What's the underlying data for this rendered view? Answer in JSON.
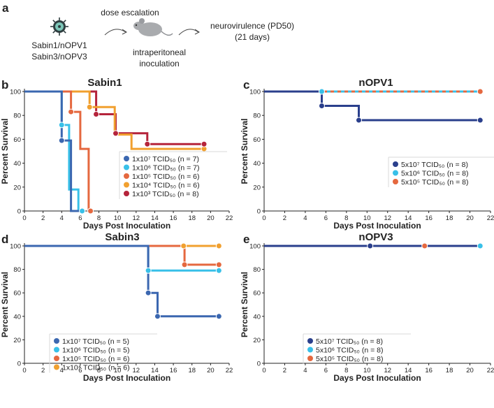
{
  "panel_a": {
    "label": "a",
    "strains": [
      "Sabin1/nOPV1",
      "Sabin3/nOPV3"
    ],
    "step1": "dose escalation",
    "step2": [
      "intraperitoneal",
      "inoculation"
    ],
    "outcome": [
      "neurovirulence (PD50)",
      "(21 days)"
    ],
    "virus_icon": "virus-icon",
    "mouse_icon": "mouse-icon"
  },
  "chart_data": [
    {
      "id": "b",
      "panel_label": "b",
      "type": "line",
      "step": true,
      "title": "Sabin1",
      "xlabel": "Days Post Inoculation",
      "ylabel": "Percent Survival",
      "xlim": [
        0,
        22
      ],
      "ylim": [
        0,
        100
      ],
      "xticks": [
        0,
        2,
        4,
        6,
        8,
        10,
        12,
        14,
        16,
        18,
        20,
        22
      ],
      "yticks": [
        0,
        20,
        40,
        60,
        80,
        100
      ],
      "legend": {
        "position": "lower-right"
      },
      "series": [
        {
          "name": "1x10⁷ TCID₅₀ (n = 7)",
          "color": "#3b67b0",
          "points": [
            [
              0,
              100
            ],
            [
              4,
              100
            ],
            [
              4,
              59
            ],
            [
              5,
              59
            ],
            [
              5,
              0
            ],
            [
              6,
              0
            ]
          ],
          "markers": [
            [
              4,
              59
            ]
          ]
        },
        {
          "name": "1x10⁶ TCID₅₀ (n = 7)",
          "color": "#38c0e8",
          "points": [
            [
              0,
              100
            ],
            [
              4,
              100
            ],
            [
              4,
              72
            ],
            [
              4.8,
              72
            ],
            [
              4.8,
              18
            ],
            [
              5.8,
              18
            ],
            [
              5.8,
              0
            ],
            [
              6.2,
              0
            ]
          ],
          "markers": [
            [
              4,
              72
            ],
            [
              6.2,
              0
            ]
          ]
        },
        {
          "name": "1x10⁵ TCID₅₀ (n = 6)",
          "color": "#e5683f",
          "points": [
            [
              0,
              100
            ],
            [
              5,
              100
            ],
            [
              5,
              83
            ],
            [
              6,
              83
            ],
            [
              6,
              52
            ],
            [
              6.9,
              52
            ],
            [
              6.9,
              0
            ],
            [
              7.1,
              0
            ]
          ],
          "markers": [
            [
              5,
              83
            ],
            [
              7.1,
              0
            ]
          ]
        },
        {
          "name": "1x10⁴ TCID₅₀ (n = 6)",
          "color": "#f1a02f",
          "points": [
            [
              0,
              100
            ],
            [
              7,
              100
            ],
            [
              7,
              87
            ],
            [
              9.7,
              87
            ],
            [
              9.7,
              64
            ],
            [
              11.5,
              64
            ],
            [
              11.5,
              52
            ],
            [
              19.3,
              52
            ]
          ],
          "markers": [
            [
              7,
              87
            ],
            [
              19.3,
              52
            ]
          ]
        },
        {
          "name": "1x10³ TCID₅₀ (n = 8)",
          "color": "#b5243b",
          "points": [
            [
              0,
              100
            ],
            [
              7.7,
              100
            ],
            [
              7.7,
              81
            ],
            [
              9.8,
              81
            ],
            [
              9.8,
              65
            ],
            [
              13.2,
              65
            ],
            [
              13.2,
              56
            ],
            [
              19.3,
              56
            ]
          ],
          "markers": [
            [
              7.7,
              81
            ],
            [
              9.8,
              65
            ],
            [
              13.2,
              56
            ],
            [
              19.3,
              56
            ]
          ]
        }
      ]
    },
    {
      "id": "c",
      "panel_label": "c",
      "type": "line",
      "step": true,
      "title": "nOPV1",
      "xlabel": "Days Post Inoculation",
      "ylabel": "Percent Survival",
      "xlim": [
        0,
        22
      ],
      "ylim": [
        0,
        100
      ],
      "xticks": [
        0,
        2,
        4,
        6,
        8,
        10,
        12,
        14,
        16,
        18,
        20,
        22
      ],
      "yticks": [
        0,
        20,
        40,
        60,
        80,
        100
      ],
      "legend": {
        "position": "lower-right"
      },
      "series": [
        {
          "name": "5x10⁷ TCID₅₀ (n = 8)",
          "color": "#2a3f8c",
          "points": [
            [
              0,
              100
            ],
            [
              5.6,
              100
            ],
            [
              5.6,
              88
            ],
            [
              9.2,
              88
            ],
            [
              9.2,
              76
            ],
            [
              21,
              76
            ]
          ],
          "markers": [
            [
              5.6,
              88
            ],
            [
              9.2,
              76
            ],
            [
              21,
              76
            ]
          ]
        },
        {
          "name": "5x10⁶ TCID₅₀ (n = 8)",
          "color": "#38c0e8",
          "points": [
            [
              0,
              100
            ],
            [
              21,
              100
            ]
          ],
          "markers": [
            [
              5.6,
              100
            ]
          ]
        },
        {
          "name": "5x10⁵ TCID₅₀ (n = 8)",
          "color": "#e5683f",
          "points": [
            [
              0,
              100
            ],
            [
              21,
              100
            ]
          ],
          "markers": [
            [
              21,
              100
            ]
          ]
        }
      ]
    },
    {
      "id": "d",
      "panel_label": "d",
      "type": "line",
      "step": true,
      "title": "Sabin3",
      "xlabel": "Days Post Inoculation",
      "ylabel": "Percent Survival",
      "xlim": [
        0,
        22
      ],
      "ylim": [
        0,
        100
      ],
      "xticks": [
        0,
        2,
        4,
        6,
        8,
        10,
        12,
        14,
        16,
        18,
        20,
        22
      ],
      "yticks": [
        0,
        20,
        40,
        60,
        80,
        100
      ],
      "legend": {
        "position": "lower-left"
      },
      "series": [
        {
          "name": "1x10⁷ TCID₅₀ (n = 5)",
          "color": "#3b67b0",
          "points": [
            [
              0,
              100
            ],
            [
              13.3,
              100
            ],
            [
              13.3,
              60
            ],
            [
              14.3,
              60
            ],
            [
              14.3,
              40
            ],
            [
              20.9,
              40
            ]
          ],
          "markers": [
            [
              13.3,
              60
            ],
            [
              14.3,
              40
            ],
            [
              20.9,
              40
            ]
          ]
        },
        {
          "name": "1x10⁶ TCID₅₀ (n = 5)",
          "color": "#38c0e8",
          "points": [
            [
              0,
              100
            ],
            [
              13.3,
              100
            ],
            [
              13.3,
              79
            ],
            [
              20.9,
              79
            ]
          ],
          "markers": [
            [
              13.3,
              79
            ],
            [
              20.9,
              79
            ]
          ]
        },
        {
          "name": "1x10⁵ TCID₅₀ (n = 6)",
          "color": "#e5683f",
          "points": [
            [
              0,
              100
            ],
            [
              17.2,
              100
            ],
            [
              17.2,
              84
            ],
            [
              20.9,
              84
            ]
          ],
          "markers": [
            [
              17.2,
              84
            ],
            [
              20.9,
              84
            ]
          ]
        },
        {
          "name": "1x10⁴ TCID₅₀ (n = 6)",
          "color": "#f1a02f",
          "points": [
            [
              0,
              100
            ],
            [
              20.9,
              100
            ]
          ],
          "markers": [
            [
              17.1,
              100
            ],
            [
              20.9,
              100
            ]
          ]
        }
      ]
    },
    {
      "id": "e",
      "panel_label": "e",
      "type": "line",
      "step": true,
      "title": "nOPV3",
      "xlabel": "Days Post Inoculation",
      "ylabel": "Percent Survival",
      "xlim": [
        0,
        22
      ],
      "ylim": [
        0,
        100
      ],
      "xticks": [
        0,
        2,
        4,
        6,
        8,
        10,
        12,
        14,
        16,
        18,
        20,
        22
      ],
      "yticks": [
        0,
        20,
        40,
        60,
        80,
        100
      ],
      "legend": {
        "position": "lower-left"
      },
      "series": [
        {
          "name": "5x10⁷ TCID₅₀ (n = 8)",
          "color": "#2a3f8c",
          "points": [
            [
              0,
              100
            ],
            [
              21,
              100
            ]
          ],
          "markers": [
            [
              10.3,
              100
            ]
          ]
        },
        {
          "name": "5x10⁶ TCID₅₀ (n = 8)",
          "color": "#38c0e8",
          "points": [
            [
              0,
              100
            ],
            [
              21,
              100
            ]
          ],
          "markers": [
            [
              21,
              100
            ]
          ]
        },
        {
          "name": "5x10⁵ TCID₅₀ (n = 8)",
          "color": "#e5683f",
          "points": [
            [
              0,
              100
            ],
            [
              21,
              100
            ]
          ],
          "markers": [
            [
              15.6,
              100
            ]
          ]
        }
      ]
    }
  ]
}
